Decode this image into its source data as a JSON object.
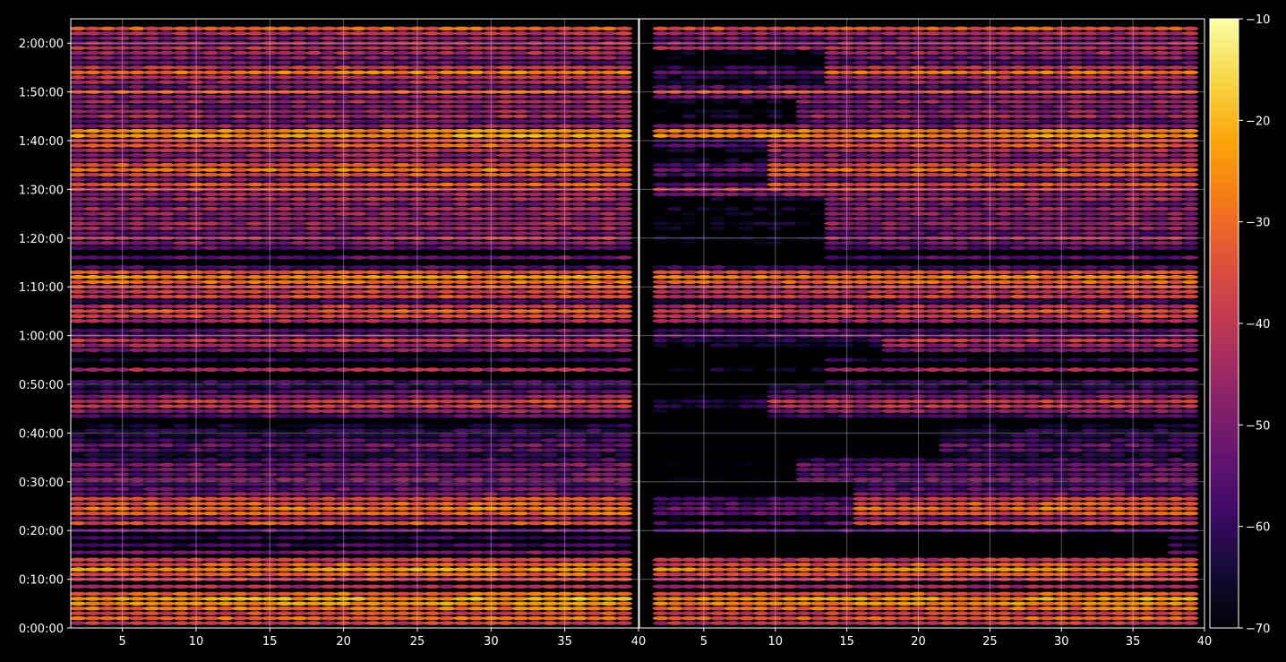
{
  "chart_data": [
    {
      "type": "heatmap",
      "title": "",
      "xlabel": "",
      "ylabel": "",
      "xlim": [
        1.5,
        40
      ],
      "ylim_seconds": [
        0,
        7500
      ],
      "grid": true,
      "x_ticks": [
        5,
        10,
        15,
        20,
        25,
        30,
        35,
        40
      ],
      "y_ticks": [
        "0:00:00",
        "0:10:00",
        "0:20:00",
        "0:30:00",
        "0:40:00",
        "0:50:00",
        "1:00:00",
        "1:10:00",
        "1:20:00",
        "1:30:00",
        "1:40:00",
        "1:50:00",
        "2:00:00"
      ],
      "y_tick_seconds": [
        0,
        600,
        1200,
        1800,
        2400,
        3000,
        3600,
        4200,
        4800,
        5400,
        6000,
        6600,
        7200
      ],
      "x_bins": [
        2,
        3,
        4,
        5,
        6,
        7,
        8,
        9,
        10,
        11,
        12,
        13,
        14,
        15,
        16,
        17,
        18,
        19,
        20,
        21,
        22,
        23,
        24,
        25,
        26,
        27,
        28,
        29,
        30,
        31,
        32,
        33,
        34,
        35,
        36,
        37,
        38,
        39
      ],
      "bands": [
        {
          "t": 60,
          "v": -40
        },
        {
          "t": 120,
          "v": -32
        },
        {
          "t": 180,
          "v": -38
        },
        {
          "t": 240,
          "v": -30
        },
        {
          "t": 300,
          "v": -27
        },
        {
          "t": 360,
          "v": -24
        },
        {
          "t": 420,
          "v": -33
        },
        {
          "t": 510,
          "v": -45
        },
        {
          "t": 600,
          "v": -40
        },
        {
          "t": 660,
          "v": -34
        },
        {
          "t": 720,
          "v": -26
        },
        {
          "t": 780,
          "v": -34
        },
        {
          "t": 840,
          "v": -40
        },
        {
          "t": 930,
          "v": -52
        },
        {
          "t": 1020,
          "v": -60
        },
        {
          "t": 1110,
          "v": -62
        },
        {
          "t": 1200,
          "v": -56
        },
        {
          "t": 1290,
          "v": -36
        },
        {
          "t": 1350,
          "v": -48
        },
        {
          "t": 1410,
          "v": -34
        },
        {
          "t": 1470,
          "v": -30
        },
        {
          "t": 1530,
          "v": -34
        },
        {
          "t": 1590,
          "v": -38
        },
        {
          "t": 1650,
          "v": -52
        },
        {
          "t": 1710,
          "v": -55
        },
        {
          "t": 1770,
          "v": -58
        },
        {
          "t": 1830,
          "v": -50
        },
        {
          "t": 1890,
          "v": -55
        },
        {
          "t": 1950,
          "v": -54
        },
        {
          "t": 2010,
          "v": -52
        },
        {
          "t": 2070,
          "v": -60
        },
        {
          "t": 2130,
          "v": -65
        },
        {
          "t": 2190,
          "v": -56
        },
        {
          "t": 2250,
          "v": -54
        },
        {
          "t": 2310,
          "v": -60
        },
        {
          "t": 2370,
          "v": -63
        },
        {
          "t": 2430,
          "v": -64
        },
        {
          "t": 2490,
          "v": -66
        },
        {
          "t": 2610,
          "v": -58
        },
        {
          "t": 2670,
          "v": -48
        },
        {
          "t": 2730,
          "v": -42
        },
        {
          "t": 2790,
          "v": -40
        },
        {
          "t": 2850,
          "v": -50
        },
        {
          "t": 2910,
          "v": -58
        },
        {
          "t": 2970,
          "v": -64
        },
        {
          "t": 3030,
          "v": -60
        },
        {
          "t": 3180,
          "v": -45
        },
        {
          "t": 3300,
          "v": -62
        },
        {
          "t": 3420,
          "v": -52
        },
        {
          "t": 3480,
          "v": -46
        },
        {
          "t": 3540,
          "v": -40
        },
        {
          "t": 3600,
          "v": -54
        },
        {
          "t": 3660,
          "v": -55
        },
        {
          "t": 3780,
          "v": -45
        },
        {
          "t": 3840,
          "v": -40
        },
        {
          "t": 3900,
          "v": -35
        },
        {
          "t": 3960,
          "v": -42
        },
        {
          "t": 4020,
          "v": -60
        },
        {
          "t": 4080,
          "v": -38
        },
        {
          "t": 4140,
          "v": -40
        },
        {
          "t": 4200,
          "v": -38
        },
        {
          "t": 4260,
          "v": -32
        },
        {
          "t": 4320,
          "v": -28
        },
        {
          "t": 4380,
          "v": -36
        },
        {
          "t": 4440,
          "v": -58
        },
        {
          "t": 4560,
          "v": -56
        },
        {
          "t": 4680,
          "v": -55
        },
        {
          "t": 4740,
          "v": -50
        },
        {
          "t": 4800,
          "v": -45
        },
        {
          "t": 4860,
          "v": -54
        },
        {
          "t": 4920,
          "v": -48
        },
        {
          "t": 4980,
          "v": -46
        },
        {
          "t": 5040,
          "v": -50
        },
        {
          "t": 5100,
          "v": -48
        },
        {
          "t": 5160,
          "v": -46
        },
        {
          "t": 5220,
          "v": -52
        },
        {
          "t": 5280,
          "v": -45
        },
        {
          "t": 5340,
          "v": -48
        },
        {
          "t": 5400,
          "v": -40
        },
        {
          "t": 5460,
          "v": -35
        },
        {
          "t": 5520,
          "v": -52
        },
        {
          "t": 5580,
          "v": -36
        },
        {
          "t": 5640,
          "v": -30
        },
        {
          "t": 5700,
          "v": -36
        },
        {
          "t": 5760,
          "v": -46
        },
        {
          "t": 5820,
          "v": -48
        },
        {
          "t": 5880,
          "v": -44
        },
        {
          "t": 5940,
          "v": -34
        },
        {
          "t": 6000,
          "v": -40
        },
        {
          "t": 6060,
          "v": -26
        },
        {
          "t": 6120,
          "v": -28
        },
        {
          "t": 6180,
          "v": -48
        },
        {
          "t": 6240,
          "v": -55
        },
        {
          "t": 6300,
          "v": -45
        },
        {
          "t": 6360,
          "v": -48
        },
        {
          "t": 6420,
          "v": -52
        },
        {
          "t": 6480,
          "v": -46
        },
        {
          "t": 6540,
          "v": -50
        },
        {
          "t": 6600,
          "v": -36
        },
        {
          "t": 6660,
          "v": -54
        },
        {
          "t": 6720,
          "v": -46
        },
        {
          "t": 6780,
          "v": -42
        },
        {
          "t": 6840,
          "v": -30
        },
        {
          "t": 6900,
          "v": -42
        },
        {
          "t": 6960,
          "v": -56
        },
        {
          "t": 7020,
          "v": -50
        },
        {
          "t": 7080,
          "v": -46
        },
        {
          "t": 7140,
          "v": -42
        },
        {
          "t": 7200,
          "v": -48
        },
        {
          "t": 7260,
          "v": -50
        },
        {
          "t": 7320,
          "v": -44
        },
        {
          "t": 7380,
          "v": -34
        }
      ],
      "notes_start_x_right": [
        {
          "t_max": 900,
          "x0": 2
        },
        {
          "t_max": 1140,
          "x0": 38
        },
        {
          "t_max": 1260,
          "x0": 2
        },
        {
          "t_max": 1800,
          "x0": 16
        },
        {
          "t_max": 2100,
          "x0": 12
        },
        {
          "t_max": 2600,
          "x0": 22
        },
        {
          "t_max": 3000,
          "x0": 10
        },
        {
          "t_max": 3360,
          "x0": 14
        },
        {
          "t_max": 3560,
          "x0": 18
        },
        {
          "t_max": 4500,
          "x0": 2
        },
        {
          "t_max": 5300,
          "x0": 14
        },
        {
          "t_max": 5420,
          "x0": 2
        },
        {
          "t_max": 6000,
          "x0": 10
        },
        {
          "t_max": 6200,
          "x0": 2
        },
        {
          "t_max": 6500,
          "x0": 12
        },
        {
          "t_max": 6700,
          "x0": 2
        },
        {
          "t_max": 7100,
          "x0": 14
        },
        {
          "t_max": 7400,
          "x0": 2
        }
      ]
    },
    {
      "type": "heatmap",
      "title": "",
      "xlabel": "",
      "ylabel": "",
      "xlim": [
        0.5,
        40
      ],
      "x_ticks": [
        5,
        10,
        15,
        20,
        25,
        30,
        35,
        40
      ],
      "grid": true
    }
  ],
  "colorbar": {
    "vmin": -70,
    "vmax": -10,
    "ticks": [
      "−10",
      "−20",
      "−30",
      "−40",
      "−50",
      "−60",
      "−70"
    ],
    "tick_values": [
      -10,
      -20,
      -30,
      -40,
      -50,
      -60,
      -70
    ],
    "colormap": "inferno"
  }
}
